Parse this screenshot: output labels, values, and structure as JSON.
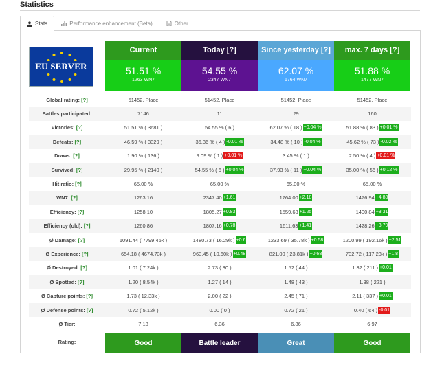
{
  "page": {
    "title": "Statistics"
  },
  "tabs": [
    {
      "label": "Stats",
      "icon": "user-icon",
      "active": true
    },
    {
      "label": "Performance enhancement (Beta)",
      "icon": "bar-chart-icon",
      "active": false
    },
    {
      "label": "Other",
      "icon": "document-icon",
      "active": false
    }
  ],
  "logo": {
    "text": "EU SERVER"
  },
  "columns": [
    {
      "header": "Current",
      "percent": "51.51 %",
      "wn7": "1263 WN7",
      "header_color": "#2e9a1e",
      "value_color": "#17ce17"
    },
    {
      "header": "Today [?]",
      "percent": "54.55 %",
      "wn7": "2347 WN7",
      "header_color": "#25113f",
      "value_color": "#5d1291"
    },
    {
      "header": "Since yesterday [?]",
      "percent": "62.07 %",
      "wn7": "1764 WN7",
      "header_color": "#5ba6d6",
      "value_color": "#4aa8ff"
    },
    {
      "header": "max. 7 days [?]",
      "percent": "51.88 %",
      "wn7": "1477 WN7",
      "header_color": "#2e9a1e",
      "value_color": "#17ce17"
    }
  ],
  "rows": [
    {
      "label": "Global rating:",
      "q": " [?]",
      "cells": [
        {
          "v": "51452. Place"
        },
        {
          "v": "51452. Place"
        },
        {
          "v": "51452. Place"
        },
        {
          "v": "51452. Place"
        }
      ]
    },
    {
      "label": "Battles participated:",
      "q": "",
      "cells": [
        {
          "v": "7146"
        },
        {
          "v": "11"
        },
        {
          "v": "29"
        },
        {
          "v": "160"
        }
      ]
    },
    {
      "label": "Victories:",
      "q": " [?]",
      "cells": [
        {
          "v": "51.51 % ( 3681 )"
        },
        {
          "v": "54.55 % ( 6 )"
        },
        {
          "v": "62.07 % ( 18 )",
          "d": "+0.04 %",
          "dir": "up"
        },
        {
          "v": "51.88 % ( 83 )",
          "d": "+0.01 %",
          "dir": "up"
        }
      ]
    },
    {
      "label": "Defeats:",
      "q": " [?]",
      "cells": [
        {
          "v": "46.59 % ( 3329 )"
        },
        {
          "v": "36.36 % ( 4 )",
          "d": "-0.01 %",
          "dir": "up"
        },
        {
          "v": "34.48 % ( 10 )",
          "d": "-0.04 %",
          "dir": "up"
        },
        {
          "v": "45.62 % ( 73 )",
          "d": "-0.02 %",
          "dir": "up"
        }
      ]
    },
    {
      "label": "Draws:",
      "q": " [?]",
      "cells": [
        {
          "v": "1.90 % ( 136 )"
        },
        {
          "v": "9.09 % ( 1 )",
          "d": "+0.01 %",
          "dir": "down"
        },
        {
          "v": "3.45 % ( 1 )"
        },
        {
          "v": "2.50 % ( 4 )",
          "d": "+0.01 %",
          "dir": "down"
        }
      ]
    },
    {
      "label": "Survived:",
      "q": " [?]",
      "cells": [
        {
          "v": "29.95 % ( 2140 )"
        },
        {
          "v": "54.55 % ( 6 )",
          "d": "+0.04 %",
          "dir": "up"
        },
        {
          "v": "37.93 % ( 11 )",
          "d": "+0.04 %",
          "dir": "up"
        },
        {
          "v": "35.00 % ( 56 )",
          "d": "+0.12 %",
          "dir": "up"
        }
      ]
    },
    {
      "label": "Hit ratio:",
      "q": " [?]",
      "cells": [
        {
          "v": "65.00 %"
        },
        {
          "v": "65.00 %"
        },
        {
          "v": "65.00 %"
        },
        {
          "v": "65.00 %"
        }
      ]
    },
    {
      "label": "WN7:",
      "q": " [?]",
      "cells": [
        {
          "v": "1263.16"
        },
        {
          "v": "2347.40",
          "d": "+1.61",
          "dir": "up"
        },
        {
          "v": "1764.00",
          "d": "+2.18",
          "dir": "up"
        },
        {
          "v": "1476.94",
          "d": "+4.83",
          "dir": "up"
        }
      ]
    },
    {
      "label": "Efficiency:",
      "q": " [?]",
      "cells": [
        {
          "v": "1258.10"
        },
        {
          "v": "1805.27",
          "d": "+0.83",
          "dir": "up"
        },
        {
          "v": "1559.63",
          "d": "+1.25",
          "dir": "up"
        },
        {
          "v": "1400.84",
          "d": "+3.31",
          "dir": "up"
        }
      ]
    },
    {
      "label": "Efficiency (old):",
      "q": " [?]",
      "cells": [
        {
          "v": "1260.86"
        },
        {
          "v": "1807.16",
          "d": "+0.78",
          "dir": "up"
        },
        {
          "v": "1611.63",
          "d": "+1.41",
          "dir": "up"
        },
        {
          "v": "1428.26",
          "d": "+3.79",
          "dir": "up"
        }
      ]
    },
    {
      "label": "Ø Damage:",
      "q": " [?]",
      "cells": [
        {
          "v": "1091.44 ( 7799.46k )"
        },
        {
          "v": "1480.73 ( 16.29k )",
          "d": "+0.6",
          "dir": "up"
        },
        {
          "v": "1233.69 ( 35.78k )",
          "d": "+0.58",
          "dir": "up"
        },
        {
          "v": "1200.99 ( 192.16k )",
          "d": "+2.51",
          "dir": "up"
        }
      ]
    },
    {
      "label": "Ø Experience:",
      "q": " [?]",
      "cells": [
        {
          "v": "654.18 ( 4674.73k )"
        },
        {
          "v": "963.45 ( 10.60k )",
          "d": "+0.48",
          "dir": "up"
        },
        {
          "v": "821.00 ( 23.81k )",
          "d": "+0.68",
          "dir": "up"
        },
        {
          "v": "732.72 ( 117.23k )",
          "d": "+1.8",
          "dir": "up"
        }
      ]
    },
    {
      "label": "Ø Destroyed:",
      "q": " [?]",
      "cells": [
        {
          "v": "1.01 ( 7.24k )"
        },
        {
          "v": "2.73 ( 30 )"
        },
        {
          "v": "1.52 ( 44 )"
        },
        {
          "v": "1.32 ( 211 )",
          "d": "+0.01",
          "dir": "up"
        }
      ]
    },
    {
      "label": "Ø Spotted:",
      "q": " [?]",
      "cells": [
        {
          "v": "1.20 ( 8.54k )"
        },
        {
          "v": "1.27 ( 14 )"
        },
        {
          "v": "1.48 ( 43 )"
        },
        {
          "v": "1.38 ( 221 )"
        }
      ]
    },
    {
      "label": "Ø Capture points:",
      "q": " [?]",
      "cells": [
        {
          "v": "1.73 ( 12.33k )"
        },
        {
          "v": "2.00 ( 22 )"
        },
        {
          "v": "2.45 ( 71 )"
        },
        {
          "v": "2.11 ( 337 )",
          "d": "+0.01",
          "dir": "up"
        }
      ]
    },
    {
      "label": "Ø Defense points:",
      "q": " [?]",
      "cells": [
        {
          "v": "0.72 ( 5.12k )"
        },
        {
          "v": "0.00 ( 0 )"
        },
        {
          "v": "0.72 ( 21 )"
        },
        {
          "v": "0.40 ( 64 )",
          "d": "-0.01",
          "dir": "down"
        }
      ]
    },
    {
      "label": "Ø Tier:",
      "q": "",
      "cells": [
        {
          "v": "7.18"
        },
        {
          "v": "6.36"
        },
        {
          "v": "6.86"
        },
        {
          "v": "6.97"
        }
      ]
    }
  ],
  "rating": {
    "label": "Rating:",
    "values": [
      {
        "text": "Good",
        "color": "#2e9a1e"
      },
      {
        "text": "Battle leader",
        "color": "#25113f"
      },
      {
        "text": "Great",
        "color": "#4a8fb6"
      },
      {
        "text": "Good",
        "color": "#2e9a1e"
      }
    ]
  }
}
